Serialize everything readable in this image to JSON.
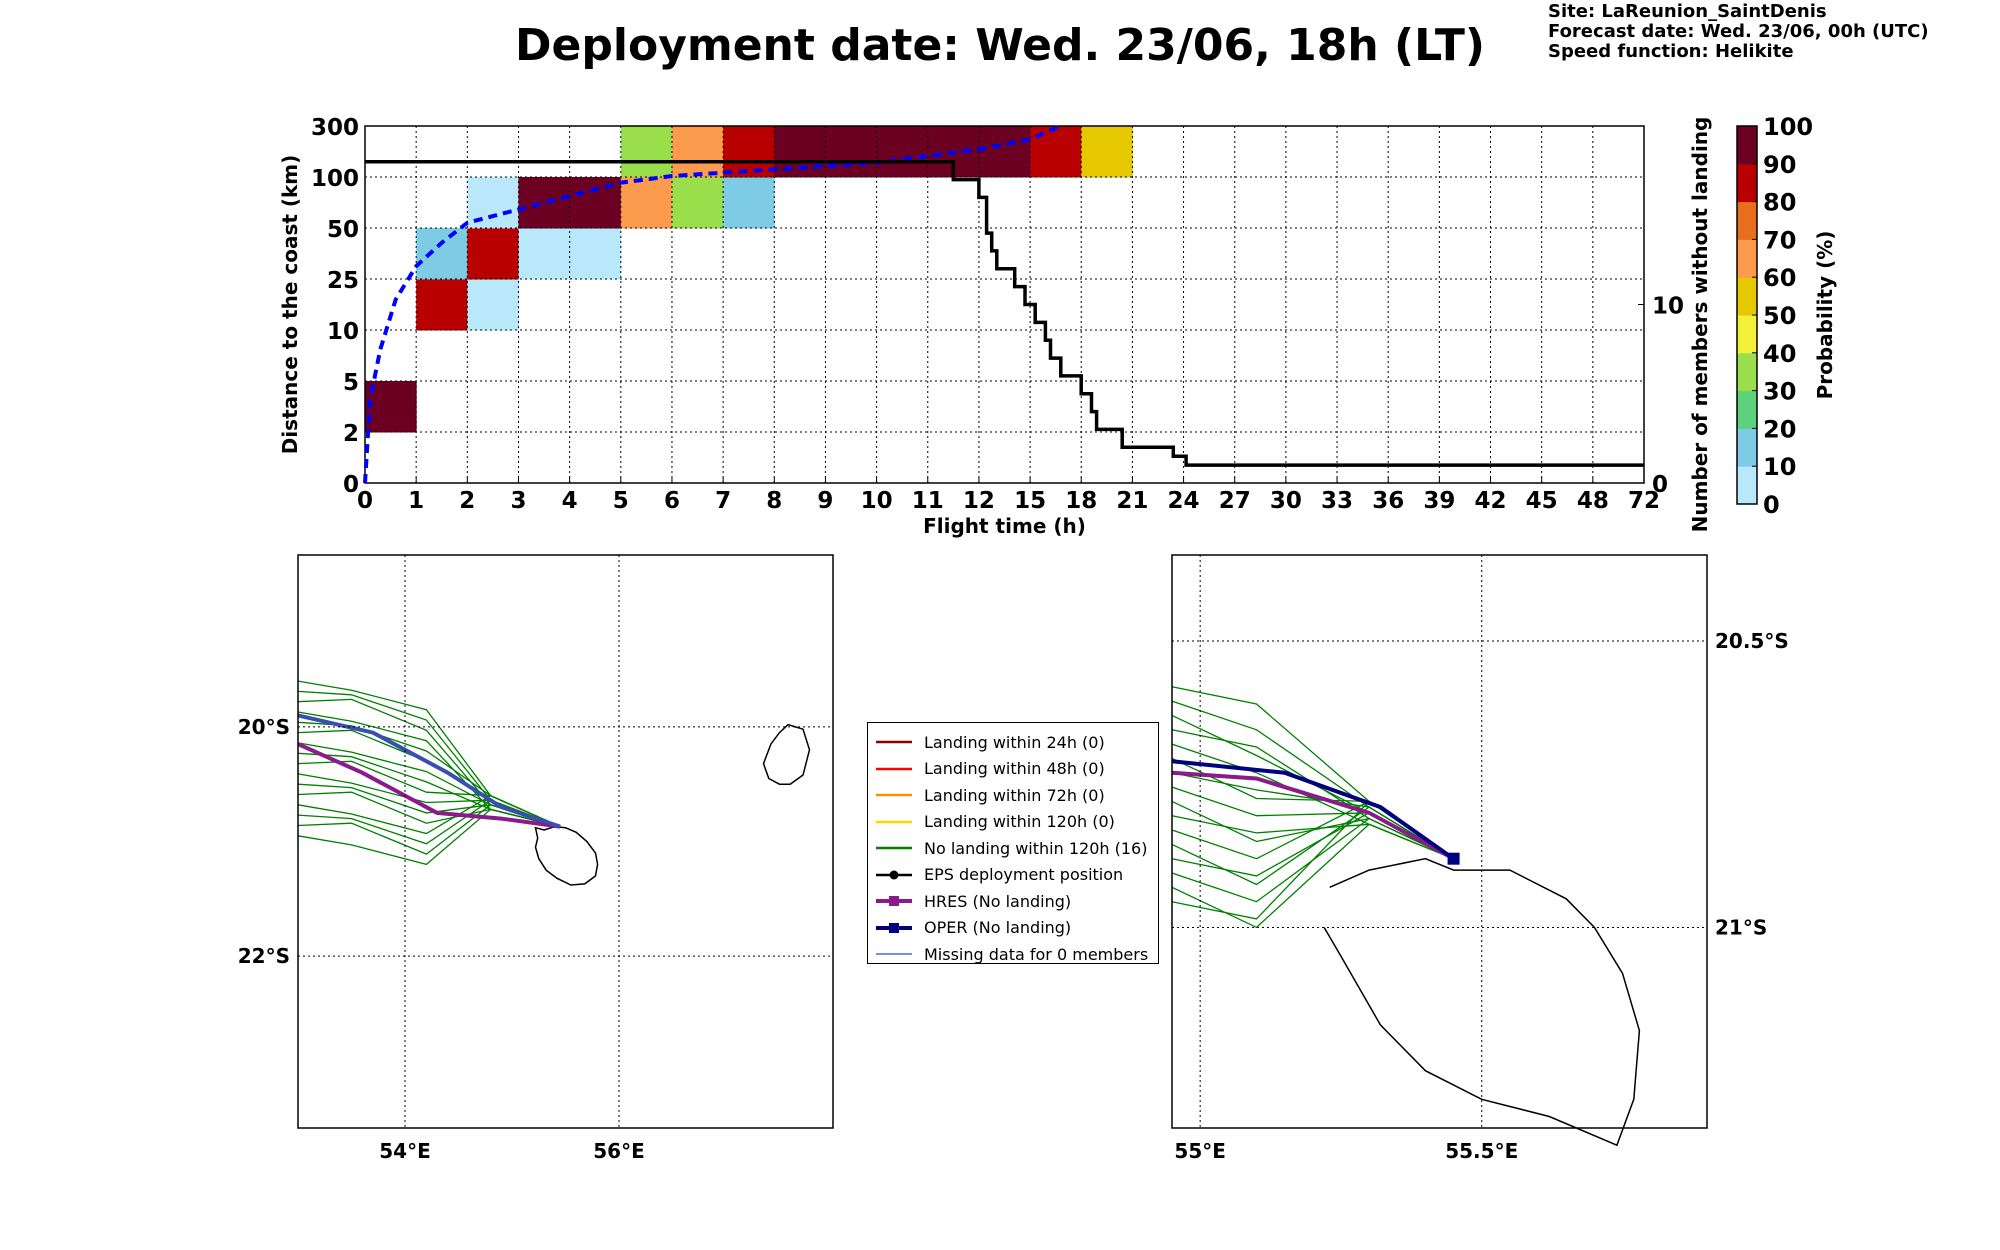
{
  "title": "Deployment date: Wed. 23/06, 18h (LT)",
  "info": {
    "site": "Site: LaReunion_SaintDenis",
    "forecast": "Forecast date: Wed. 23/06, 00h (UTC)",
    "speed": "Speed function: Helikite"
  },
  "chart_data": [
    {
      "type": "heatmap",
      "xlabel": "Flight time (h)",
      "ylabel": "Distance to the coast (km)",
      "y2label": "Number of members without landing",
      "colorbar_label": "Probability (%)",
      "x_ticks": [
        "0",
        "1",
        "2",
        "3",
        "4",
        "5",
        "6",
        "7",
        "8",
        "9",
        "10",
        "11",
        "12",
        "15",
        "18",
        "21",
        "24",
        "27",
        "30",
        "33",
        "36",
        "39",
        "42",
        "45",
        "48",
        "72"
      ],
      "y_ticks": [
        "0",
        "2",
        "5",
        "10",
        "25",
        "50",
        "100",
        "300"
      ],
      "y2_ticks": [
        "0",
        "10"
      ],
      "y2_range": [
        0,
        20
      ],
      "colorbar_ticks": [
        "0",
        "10",
        "20",
        "30",
        "40",
        "50",
        "60",
        "70",
        "80",
        "90",
        "100"
      ],
      "colorbar_colors": [
        "#b9e8fb",
        "#7ecbe6",
        "#5ed17e",
        "#9ade4c",
        "#f3f03a",
        "#e6c800",
        "#fc9b4e",
        "#e86e1f",
        "#b90000",
        "#6b0022"
      ],
      "cells": [
        {
          "x": 0,
          "y": 1,
          "p": 95
        },
        {
          "x": 1,
          "y": 3,
          "p": 85
        },
        {
          "x": 1,
          "y": 4,
          "p": 10
        },
        {
          "x": 2,
          "y": 3,
          "p": 5
        },
        {
          "x": 2,
          "y": 4,
          "p": 85
        },
        {
          "x": 2,
          "y": 5,
          "p": 5
        },
        {
          "x": 3,
          "y": 4,
          "p": 5
        },
        {
          "x": 3,
          "y": 5,
          "p": 95
        },
        {
          "x": 4,
          "y": 4,
          "p": 5
        },
        {
          "x": 4,
          "y": 5,
          "p": 95
        },
        {
          "x": 5,
          "y": 5,
          "p": 65
        },
        {
          "x": 5,
          "y": 6,
          "p": 35
        },
        {
          "x": 6,
          "y": 5,
          "p": 35
        },
        {
          "x": 6,
          "y": 6,
          "p": 65
        },
        {
          "x": 7,
          "y": 5,
          "p": 10
        },
        {
          "x": 7,
          "y": 6,
          "p": 85
        },
        {
          "x": 8,
          "y": 6,
          "p": 95
        },
        {
          "x": 9,
          "y": 6,
          "p": 95
        },
        {
          "x": 10,
          "y": 6,
          "p": 95
        },
        {
          "x": 11,
          "y": 6,
          "p": 95
        },
        {
          "x": 12,
          "y": 6,
          "p": 95
        },
        {
          "x": 13,
          "y": 6,
          "p": 85
        },
        {
          "x": 14,
          "y": 6,
          "p": 55
        }
      ],
      "mean_distance_curve": {
        "x": [
          0,
          0.1,
          0.3,
          0.6,
          1.0,
          1.5,
          2.0,
          2.5,
          3.0,
          3.5,
          4.0,
          4.5,
          5.0,
          5.5,
          6.0,
          7.0,
          8.0,
          9.0,
          10.0,
          11.0,
          12.0,
          13.0,
          13.6
        ],
        "y": [
          0,
          2.5,
          4,
          5.5,
          6.5,
          7.2,
          7.8,
          8.0,
          8.2,
          8.4,
          8.6,
          8.8,
          9.0,
          9.1,
          9.2,
          9.3,
          9.4,
          9.5,
          9.6,
          9.8,
          10.0,
          10.3,
          10.7
        ],
        "color": "#0000ff"
      },
      "members_without_landing": {
        "x": [
          0,
          11.5,
          11.5,
          12.0,
          12.0,
          12.15,
          12.15,
          12.25,
          12.25,
          12.35,
          12.35,
          12.7,
          12.7,
          12.9,
          12.9,
          13.1,
          13.1,
          13.3,
          13.3,
          13.4,
          13.4,
          13.6,
          13.6,
          14.0,
          14.0,
          14.2,
          14.2,
          14.3,
          14.3,
          14.8,
          14.8,
          15.8,
          15.8,
          16.05,
          16.05,
          17.0,
          17.0,
          25.0
        ],
        "y": [
          18,
          18,
          17,
          17,
          16,
          16,
          14,
          14,
          13,
          13,
          12,
          12,
          11,
          11,
          10,
          10,
          9,
          9,
          8,
          8,
          7,
          7,
          6,
          6,
          5,
          5,
          4,
          4,
          3,
          3,
          2,
          2,
          1.5,
          1.5,
          1,
          1,
          1,
          1
        ],
        "color": "#000000"
      }
    },
    {
      "type": "map",
      "name": "wide-map",
      "x_ticks": [
        "54°E",
        "56°E"
      ],
      "y_ticks": [
        "20°S",
        "22°S"
      ],
      "lon_range": [
        53,
        58
      ],
      "lat_range": [
        -23.5,
        -18.5
      ]
    },
    {
      "type": "map",
      "name": "zoom-map",
      "x_ticks": [
        "55°E",
        "55.5°E"
      ],
      "y_ticks": [
        "20.5°S",
        "21°S"
      ],
      "lon_range": [
        54.95,
        55.9
      ],
      "lat_range": [
        -21.35,
        -20.35
      ]
    }
  ],
  "legend": [
    {
      "label": "Landing within 24h (0)",
      "color": "#8b0000",
      "kind": "line"
    },
    {
      "label": "Landing within 48h (0)",
      "color": "#ff0000",
      "kind": "line"
    },
    {
      "label": "Landing within 72h (0)",
      "color": "#ff8c00",
      "kind": "line"
    },
    {
      "label": "Landing within 120h (0)",
      "color": "#ffd700",
      "kind": "line"
    },
    {
      "label": "No landing within 120h (16)",
      "color": "#008000",
      "kind": "line"
    },
    {
      "label": "EPS deployment position",
      "color": "#000000",
      "kind": "dot"
    },
    {
      "label": "HRES (No landing)",
      "color": "#8b1a8b",
      "kind": "square"
    },
    {
      "label": "OPER (No landing)",
      "color": "#000080",
      "kind": "square"
    },
    {
      "label": "Missing data for 0 members",
      "color": "#4169e1",
      "kind": "thin"
    }
  ]
}
